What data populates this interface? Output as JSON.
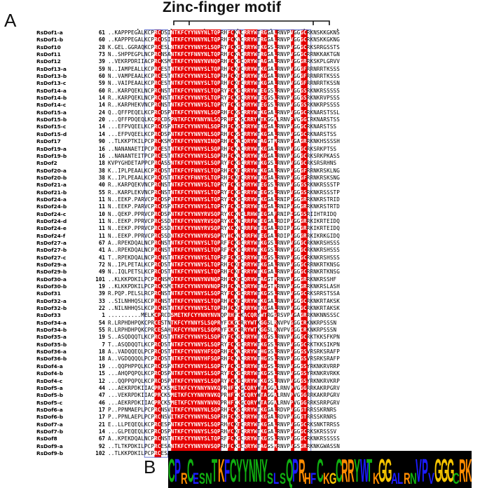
{
  "figure": {
    "panel_a": "A",
    "panel_b": "B",
    "title": "Zinc-finger motif"
  },
  "alignment": [
    {
      "name": "RsDof1-a",
      "start": "61",
      "seq": "..KAPPPEGALKCPRCDSINTKFCYYNNYNLTQPRHFCKACRRYWTRGGALRNVPVGGGCRKNSKKGKNS"
    },
    {
      "name": "RsDof1-b",
      "start": "60",
      "seq": "..KAPPPEGALKCPRCDSINTKFCYYNNYNLTQPRHFCKACRRYWTRGGALRNVPVGGGCRKNSKKGKNG"
    },
    {
      "name": "RsDof10",
      "start": "28",
      "seq": "K.GEL.GGRAQKCPRCESLNTKFCYYNNYSLSQPRYFCKGCRRYWTKGGSLRNVPVGGGCRKSRRGSSTS"
    },
    {
      "name": "RsDof11",
      "start": "73",
      "seq": "N..SHPPEGPLNCPRCNSANTKFCYFNNYNLTQPRHFCKACRRYWTRGGALRNVPVGGGCRRNKKAKTGN"
    },
    {
      "name": "RsDof12",
      "start": "39",
      "seq": "..VEKRPDRIIACPRCKSMETKFCYYNNYNVNQPRHFCKGCQRYWTAGGALRNVPVGGGRRKSKPLGRVV"
    },
    {
      "name": "RsDof13-a",
      "start": "59",
      "seq": "N..IAMPEALLKCPRCESTNTKFCYYNNYSLTQPRHFCKTCRRYWTKGGALRNVPVGGGFRRNRRTKSSS"
    },
    {
      "name": "RsDof13-b",
      "start": "60",
      "seq": "N..VAMPEAALKCPRCESTNTKFCYYNNYSLTQPRHFCKTCRRYWTKGGALRNVPVGGGFRRNRRTKSSS"
    },
    {
      "name": "RsDof13-c",
      "start": "59",
      "seq": "N..VAIPEAALKCPRCESTNTKFCYYNNYSLTQPRHFCKTCRRYWTKGGALRNVPVGGGFRRNRRTKSSN"
    },
    {
      "name": "RsDof14-a",
      "start": "60",
      "seq": "R..KARPQEKLNCPRCNSTNTKFCYYNNYSLTQPRYFCKGCRRYWTEGGSLRNVPVGGGSRKNKRSSSSS"
    },
    {
      "name": "RsDof14-b",
      "start": "14",
      "seq": "R..KARPQEKLNCPRCNSTNTKFCYYNNYSLTQPRYFCKGCRRYWTEGGSLRNVPVGGGSRKNKRVPSSS"
    },
    {
      "name": "RsDof14-c",
      "start": "14",
      "seq": "R..KARPHEKVNCPRCNSTNTKFCYYNNYSLTQPRYFCKGCRRYWTEGGSLRNVPVGGGSRKNKRPSSSS"
    },
    {
      "name": "RsDof15-a",
      "start": "24",
      "seq": "Q..QFFPEQELKCPRCDSPNTKFCYYNNYNLSQPRHFCKSCRRYWTKGGALRNVPVGGGCRKNARSTSSL"
    },
    {
      "name": "RsDof15-b",
      "start": "20",
      "seq": "...QFFPDQEQLKCPRCDSPNTKFCYYNNYNLSQPRHFCKSCRRYWTKGGALRNVPVGGGCRKNARSTSS"
    },
    {
      "name": "RsDof15-c",
      "start": "14",
      "seq": "...EFPVQEELKCPRCDSPNTKFCYYNNYNLSQPRHFCKSCRRYWTKGGALRNVPVGGGCRKNARSTSS"
    },
    {
      "name": "RsDof15-d",
      "start": "14",
      "seq": "...EFPVQEELKCPRCDSPNTKFCYYNNYNLSQPRHFCKSCRRYWTKGGALRNVPVGGGCRKNARSTSS"
    },
    {
      "name": "RsDof17",
      "start": "90",
      "seq": "..TLKKPTKILPCPRCKSMDTKFCYYNNYNINQPRHFCKACQRYWTAGGTMRNVPVGAGRRKNKHSSSSHY"
    },
    {
      "name": "RsDof19-a",
      "start": "16",
      "seq": "..NANANAETIPCPRCESTNTKFCYYNNYSLSQPRHFCKACRRYWTKGGALRNVPVGGGCRKSRKPTSS"
    },
    {
      "name": "RsDof19-b",
      "start": "16",
      "seq": "..NANANTEITPCPRCESTNTKFCYYNNYSLSQPRHFCKACRRYWTKGGALRNVPVGGGCRKSRKPKASS"
    },
    {
      "name": "RsDof2",
      "start": "18",
      "seq": "KVPYGHDETAPPCPRCASSNTKFCYYNNYSLSQPRYFCKGCRRYWTKGGSLRNVPVGGGCRKSRSRHNS"
    },
    {
      "name": "RsDof20-a",
      "start": "38",
      "seq": "K..IPLPEAALKCPRCDSTNTKFCYFNNYSLTQPRHFCKTCRRYWTKGGALRNVPVGGGFRRNKRSKLNG"
    },
    {
      "name": "RsDof20-b",
      "start": "38",
      "seq": "K..IPLPEAALKCPRCDSTNTKFCYFNNYSLTQPRHFCKTCRRYWTKGGALRNVPVGGGFRRNKRSKSNG"
    },
    {
      "name": "RsDof21-a",
      "start": "40",
      "seq": "R..KARPQEKVNCPRCNSTNTKFCYYNNYSLTQPRYFCKGCRRYWTEGGSLRNVPVGGGSRKNKRSSSTPL"
    },
    {
      "name": "RsDof21-b",
      "start": "55",
      "seq": "R..KARPLEKVNCPRCNSTNTKFCYYNNYSLTQPRYFCKGCRRYWTEGGSLRNVPVGGGSRKNKRSSSTPL"
    },
    {
      "name": "RsDof24-a",
      "start": "11",
      "seq": "N..EEKP.PARVCPRCDSPNTKFCYYNNYSLTQPRYFCKGCRRYWTKGGALRNIPVGGGRRKNKRSTRIDQ"
    },
    {
      "name": "RsDof24-b",
      "start": "11",
      "seq": "N..EEKP.PARVCPRCDSPNTKFCYYNNYSLTQPRYFCKGCRRYWTKGGALRNIPVGGGRRKNKRSTRTDQ"
    },
    {
      "name": "RsDof24-c",
      "start": "10",
      "seq": "N..QEKP.PPRVCPRCDSPNTKFCYYNNYRVSQPRYKCKNCLRHWTEGGAFRNIPIGGGSRIIHTRIDQ"
    },
    {
      "name": "RsDof24-d",
      "start": "11",
      "seq": "N..EEKP.PPRVCPRCSSDNTKFCYYNNYRVSQPRYKCKNCRRFWTEGGALRDIPVGGGRRKIKRTEIDQ"
    },
    {
      "name": "RsDof24-e",
      "start": "11",
      "seq": "N..EEKP.PPRVCPRCSSDNTKFCYYNNYRVSQPRYKCKNCRRFWTEGGALRDIPVGGGRRKIKRTEIDQ"
    },
    {
      "name": "RsDof24-f",
      "start": "11",
      "seq": "N..EEKP.PPRVCPRCSSDNTKFCYYNNYRVSQPRYHCKNCRRFWTEGGALRDIPVGGGRRKIKRKGIDQ"
    },
    {
      "name": "RsDof27-a",
      "start": "67",
      "seq": "A..RPEKDQALNCPRCNSTNTKFCYYNNYSLTQPRFFCKGCRRYWTKGGSLRNVPVGGGCRKNKRSHSSS"
    },
    {
      "name": "RsDof27-b",
      "start": "41",
      "seq": "A..RPEKDQALNCPRCNSTNTKFCYYNNYSLTQPRFFCKGCRRYWTKGGSLRNVPVGGGCRKNKRSHSSS"
    },
    {
      "name": "RsDof27-c",
      "start": "41",
      "seq": "T..RPEKDQALNCPRCNSTNTKFCYYNNYSLTQPRFFCKGCRRYWTKGGSLRNVPVGGGCRKNKRSHSSS"
    },
    {
      "name": "RsDof29-a",
      "start": "72",
      "seq": "N..IPLPETALKCPRCDSTNTKFCYYNNYSLTQPRHFCKTCRRYWTKGGALRNVPVGGGCRRNKRTKNSG"
    },
    {
      "name": "RsDof29-b",
      "start": "49",
      "seq": "N..IQLPETSLKCPRCDSTNTKFCYYNNYSLTQPRHFCKTCRRYWTKGGALRNVPVGGGCRRNKRTKNSG"
    },
    {
      "name": "RsDof30-a",
      "start": "101",
      "seq": "..KLKKPDKILPCPRCNSMDTKFCYYNNYNVNQPRHFCKTCQRYWTAGGTMRNVPVGGGRRKNKRSSHF"
    },
    {
      "name": "RsDof30-b",
      "start": "19",
      "seq": "..KLKKPDKILPCPRCKSMETKFCYYNNYNVNQPRHFCKACQRYWTAGGTMRNVPVGGGRRKNKRSLASHY"
    },
    {
      "name": "RsDof31",
      "start": "39",
      "seq": "R.PQP.PELSLRCPRCNSTNTKFCYYNNYSLSQPRYFCKGCRRYWTKGGSLRNVPVGGGCRKSRRSTSSA"
    },
    {
      "name": "RsDof32-a",
      "start": "33",
      "seq": "..SILNHHQSLKCPRCNSTNTKFCYYNNYSLTQPRHFCKTCRRYWTKGGALRNVPVGGGCRKNKRTAKSKKQ"
    },
    {
      "name": "RsDof32-b",
      "start": "22",
      "seq": "..NILNHHQSLKCPRCNSTNTKFCYYNNYSLTQPRHFCKTCRRYWTKGGALRNVPVGGGCRKNKRTAKSKKQ"
    },
    {
      "name": "RsDof33",
      "start": "1",
      "seq": "..........MELKCPRCDSMETKFCYYNNYNVNQPRHFCKACQRYWTRGGRSVPVGAGRRKNKNNSSSC"
    },
    {
      "name": "RsDof34-a",
      "start": "54",
      "seq": "R.LRPHDHPQKCPRCESTNTKFCYYNNYSLSQPRYFCKGCRRYWTKGGSLRNVPVGGGCRKNKRPSSSN"
    },
    {
      "name": "RsDof34-b",
      "start": "55",
      "seq": "R.LRPHDHPQKCPRCESAHTKFCYYNNYSLSQPRYFCKGCRRYWTKGGSLRNVPVGGGCRKNKRPSSSN"
    },
    {
      "name": "RsDof35-a",
      "start": "19",
      "seq": "S..ASQDQQTLKCPRCDSTNTKFCYYNNYSLSQPRYFCKGCRRYWTKGGSLRNVPVGGGCRKTKKSFKPN"
    },
    {
      "name": "RsDof35-b",
      "start": "7",
      "seq": "T..ASQDQQTLKCPRCDSTNTKFCYYNNYSLSQPRYFCKGCRRYWTKGGSLRNVPVGGGCRKTKKSIKPN"
    },
    {
      "name": "RsDof36-a",
      "start": "18",
      "seq": "A..VADQQEQLPCPRCDSTNTKFCYYNNYHFSQPRHFCKACRRYWTHGGSLRNVPVGGGSVRSRKSRAFPGS"
    },
    {
      "name": "RsDof36-b",
      "start": "18",
      "seq": "A..VGDQQQQLPCPRCDSTNTKFCYYNNYHFSQPRHFCKACRRYWTHGGSLRNVPVGGGSVRSRKSRAFPGS"
    },
    {
      "name": "RsDof4-a",
      "start": "19",
      "seq": "...QQPHPPQLKCPRCDSPNTKFCYYNNYSLSQPRYFCKGCRRYWTKGGSLRNVPVGGGSYRKNKRVRRPA"
    },
    {
      "name": "RsDof4-b",
      "start": "15",
      "seq": "...AHQPQPQLKCPRCDSPNTKFCYYNNYSLSQPRYFCKGCRRYWTKGGSLRNVPVGGGSYRKNKRVRKKA"
    },
    {
      "name": "RsDof4-c",
      "start": "12",
      "seq": "...QQPPQPQLKCPRCDSPNTKFCYYNNYSLSQPRYFCKGCRRYWTKGGSLRNVPVGGGSYRKNKRVKRPA"
    },
    {
      "name": "RsDof5-a",
      "start": "44",
      "seq": "...AEKRPDKIIACPRCKSMETKFCYYNNYNVKQPRHFCKGCQRYWTAGGALRNVPVGGGRRKAKRPGRVG"
    },
    {
      "name": "RsDof5-b",
      "start": "47",
      "seq": "...VEKRPDKIIACPRCKSMETKFCYYNNYNVKQPRHFCKGCQRYWTAGGALRNVPVGGGRRKAKRPGRVG"
    },
    {
      "name": "RsDof5-c",
      "start": "46",
      "seq": "...AEKRPDKIIACPRCKSMETKFCYYNNYNVNQPRHFCKGCQRYWTAGGALRNVPVGGGRRKSRRPGRVG"
    },
    {
      "name": "RsDof6-a",
      "start": "17",
      "seq": "P..PPNMAEPLPCPRCNSVITKFCYYNNYNLSQPRHFCKSCRRYWTKGGALRDVPVGGGTRRSSKRNRS"
    },
    {
      "name": "RsDof6-b",
      "start": "17",
      "seq": "P..PPNLAEPLPCPRCNSVITKFCYYNNYNLSQPRHFCKSCRRYWTKGGALRDVPVGGGTRRSSKRNRS"
    },
    {
      "name": "RsDof7-a",
      "start": "21",
      "seq": "E..LLPEQEQLKCPRCESPNTKFCYYNNYSLSQPRHYCKTCRRYWTKGGALRNVPVGGGCRKSNKTRRSSS"
    },
    {
      "name": "RsDof7-b",
      "start": "14",
      "seq": "...GLPEQEQLKCPRCDSPNTKFCYYNNYSLSQPRHYCKTCRRYWTKGGALRNVPVGGGCRKSKRSSSV"
    },
    {
      "name": "RsDof8",
      "start": "67",
      "seq": "A..KPEKDQALNCPRCNSTNTKFCYYNNYSLTQPRFFCKGCRRYWTKGGSLRNVPVGGGCRKNKRSSSSS"
    },
    {
      "name": "RsDof9-a",
      "start": "92",
      "seq": "..TLTKPDKILPCPRCESANTKFCYYNNYNVSQPRHFCKGCQRYWTAGGSMRNVPVGSGRRKNKGWASSN"
    },
    {
      "name": "RsDof9-b",
      "start": "102",
      "seq": "..TLKKPDKILPCPRCESANTKFCYYNNYNVSQPRHFCKGCQRYWTAGGSMRNVPVGSGRRKNKGWPSSN"
    }
  ],
  "logo_sequence": [
    "C",
    "P",
    "R",
    "C",
    "E",
    "S",
    "N",
    "T",
    "K",
    "F",
    "C",
    "Y",
    "Y",
    "N",
    "N",
    "Y",
    "S",
    "L",
    "S",
    "Q",
    "P",
    "R",
    "H",
    "F",
    "C",
    "K",
    "G",
    "C",
    "R",
    "R",
    "Y",
    "W",
    "T",
    "K",
    "G",
    "G",
    "A",
    "L",
    "R",
    "N",
    "V",
    "P",
    "V",
    "G",
    "G",
    "G",
    "C",
    "R",
    "K"
  ],
  "colors": {
    "conserved_bg": "#e60000",
    "block_outline": "#4b59c8",
    "logo_bg": "#000000",
    "aa_hydrophobic": "#1c1cff",
    "aa_polar": "#10b010",
    "aa_basic": "#ff8c00",
    "aa_gly": "#f5c400"
  }
}
